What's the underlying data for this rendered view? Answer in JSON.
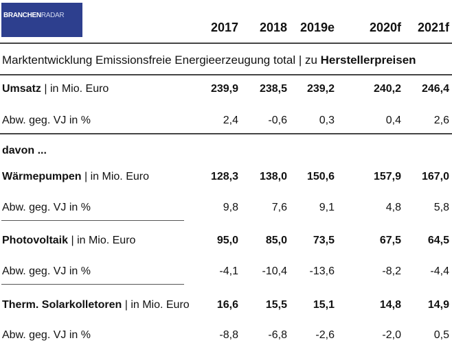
{
  "logo": {
    "part1": "BRANCHEN",
    "part2": "RADAR"
  },
  "years": [
    "2017",
    "2018",
    "2019e",
    "2020f",
    "2021f"
  ],
  "subtitle": {
    "prefix": "Marktentwicklung Emissionsfreie Energieerzeugung total | zu ",
    "emph": "Herstellerpreisen"
  },
  "davon": "davon ...",
  "rows": [
    {
      "name": "Umsatz",
      "unit": " | in Mio. Euro",
      "values": [
        "239,9",
        "238,5",
        "239,2",
        "240,2",
        "246,4"
      ]
    },
    {
      "name": "Abw. geg. VJ in %",
      "values": [
        "2,4",
        "-0,6",
        "0,3",
        "0,4",
        "2,6"
      ]
    },
    {
      "name": "Wärmepumpen",
      "unit": " | in Mio. Euro",
      "values": [
        "128,3",
        "138,0",
        "150,6",
        "157,9",
        "167,0"
      ]
    },
    {
      "name": "Abw. geg. VJ in %",
      "values": [
        "9,8",
        "7,6",
        "9,1",
        "4,8",
        "5,8"
      ]
    },
    {
      "name": "Photovoltaik",
      "unit": " | in Mio. Euro",
      "values": [
        "95,0",
        "85,0",
        "73,5",
        "67,5",
        "64,5"
      ]
    },
    {
      "name": "Abw. geg. VJ in %",
      "values": [
        "-4,1",
        "-10,4",
        "-13,6",
        "-8,2",
        "-4,4"
      ]
    },
    {
      "name": "Therm. Solarkolletoren",
      "unit": " | in Mio. Euro",
      "values": [
        "16,6",
        "15,5",
        "15,1",
        "14,8",
        "14,9"
      ]
    },
    {
      "name": "Abw. geg. VJ in %",
      "values": [
        "-8,8",
        "-6,8",
        "-2,6",
        "-2,0",
        "0,5"
      ]
    }
  ]
}
